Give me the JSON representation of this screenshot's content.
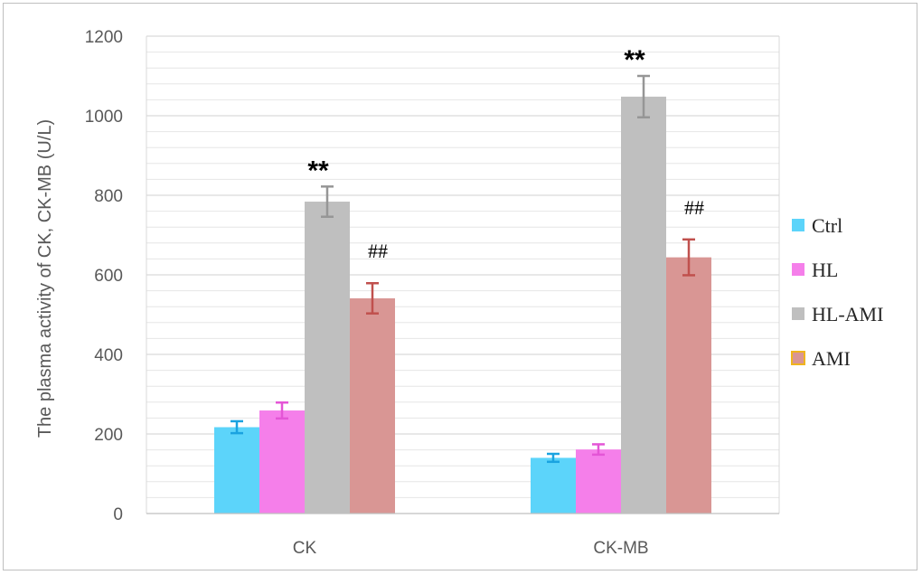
{
  "chart_data": {
    "type": "bar",
    "title": "",
    "xlabel": "",
    "ylabel": "The plasma activity of CK, CK-MB (U/L)",
    "ylim": [
      0,
      1200
    ],
    "yticks": [
      0,
      200,
      400,
      600,
      800,
      1000,
      1200
    ],
    "minor_grid_step": 40,
    "grid": true,
    "legend_position": "right",
    "categories": [
      "CK",
      "CK-MB"
    ],
    "series": [
      {
        "name": "Ctrl",
        "color": "#5cd4fa",
        "error_color": "#1aa3e0",
        "values": [
          217,
          140
        ],
        "errors": [
          15,
          10
        ]
      },
      {
        "name": "HL",
        "color": "#f57fea",
        "error_color": "#e455d6",
        "values": [
          259,
          161
        ],
        "errors": [
          20,
          13
        ]
      },
      {
        "name": "HL-AMI",
        "color": "#bfbfbf",
        "error_color": "#969696",
        "values": [
          784,
          1048
        ],
        "errors": [
          38,
          52
        ]
      },
      {
        "name": "AMI",
        "color": "#d99694",
        "error_color": "#c0504d",
        "legend_border": "#f0b41e",
        "values": [
          541,
          644
        ],
        "errors": [
          38,
          45
        ]
      }
    ],
    "annotations": [
      {
        "category": 0,
        "series": 2,
        "text": "**",
        "style": "star"
      },
      {
        "category": 1,
        "series": 2,
        "text": "**",
        "style": "star"
      },
      {
        "category": 0,
        "series": 3,
        "text": "##",
        "style": "hash"
      },
      {
        "category": 1,
        "series": 3,
        "text": "##",
        "style": "hash"
      }
    ]
  }
}
